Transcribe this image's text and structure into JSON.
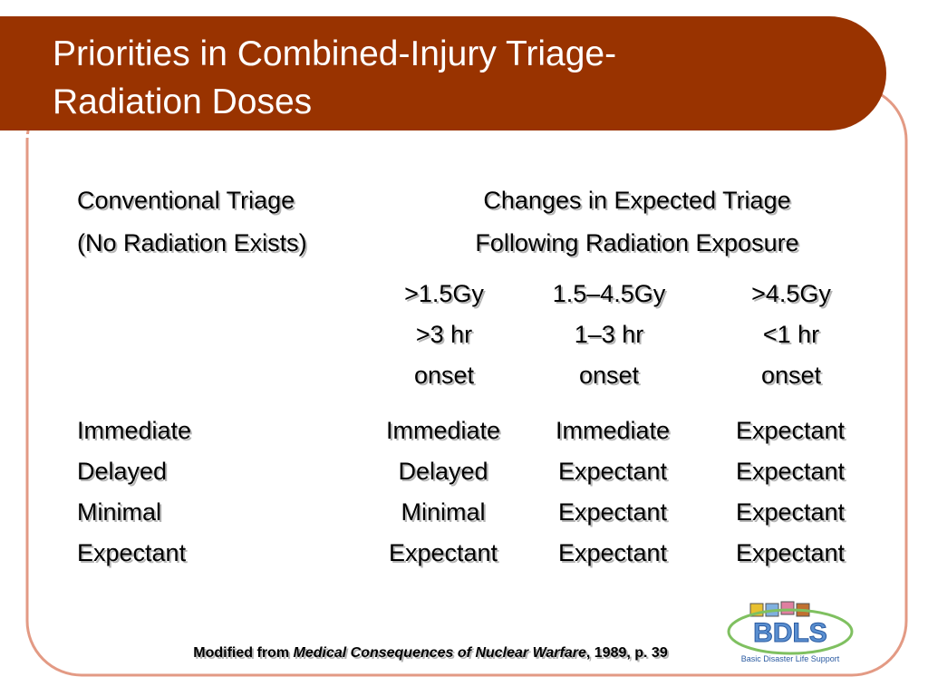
{
  "title": [
    "Priorities in Combined-Injury Triage-",
    "Radiation Doses"
  ],
  "header": {
    "conventional": [
      "Conventional Triage",
      "(No Radiation Exists)"
    ],
    "changes": [
      "Changes in Expected Triage",
      "Following Radiation Exposure"
    ]
  },
  "doses": [
    [
      ">1.5Gy",
      ">3 hr",
      "onset"
    ],
    [
      "1.5–4.5Gy",
      "1–3 hr",
      "onset"
    ],
    [
      ">4.5Gy",
      "<1 hr",
      "onset"
    ]
  ],
  "table": {
    "rows": [
      [
        "Immediate",
        "Immediate",
        "Immediate",
        "Expectant"
      ],
      [
        "Delayed",
        "Delayed",
        "Expectant",
        "Expectant"
      ],
      [
        "Minimal",
        "Minimal",
        "Expectant",
        "Expectant"
      ],
      [
        "Expectant",
        "Expectant",
        "Expectant",
        "Expectant"
      ]
    ]
  },
  "citation": {
    "prefix": "Modified from ",
    "source": "Medical Consequences of Nuclear Warfare",
    "suffix": ", 1989, p. 39"
  },
  "logo": {
    "name": "BDLS",
    "tagline": "Basic Disaster Life Support"
  }
}
